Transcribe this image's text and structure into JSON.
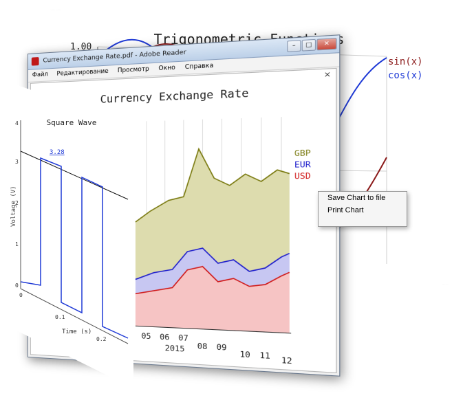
{
  "trig_chart": {
    "title": "Trigonometric Functions",
    "y_top_label": "1.00",
    "legend": [
      "sin(x)",
      "cos(x)"
    ],
    "colors": {
      "sin": "#8b1a1a",
      "cos": "#1f3ad6"
    }
  },
  "reader": {
    "window_title": "Currency Exchange Rate.pdf - Adobe Reader",
    "menu": [
      "Файл",
      "Редактирование",
      "Просмотр",
      "Окно",
      "Справка"
    ],
    "close_doc": "×"
  },
  "currency_chart": {
    "title": "Currency Exchange Rate",
    "legend": [
      "GBP",
      "EUR",
      "USD"
    ],
    "x_ticks": [
      "05",
      "06",
      "07",
      "08",
      "09",
      "10",
      "11",
      "12"
    ],
    "year": "2015",
    "colors": {
      "GBP": "#7a7a10",
      "EUR": "#1f1fcc",
      "USD": "#d01818"
    }
  },
  "square_chart": {
    "title": "Square Wave",
    "ylabel": "Voltage (V)",
    "xlabel": "Time (s)",
    "annotation": "3.28",
    "y_ticks": [
      "4",
      "3",
      "2",
      "1",
      "0"
    ],
    "x_ticks": [
      "0",
      "0.1",
      "0.2"
    ]
  },
  "context_menu": {
    "items": [
      "Save Chart to file",
      "Print Chart"
    ]
  }
}
